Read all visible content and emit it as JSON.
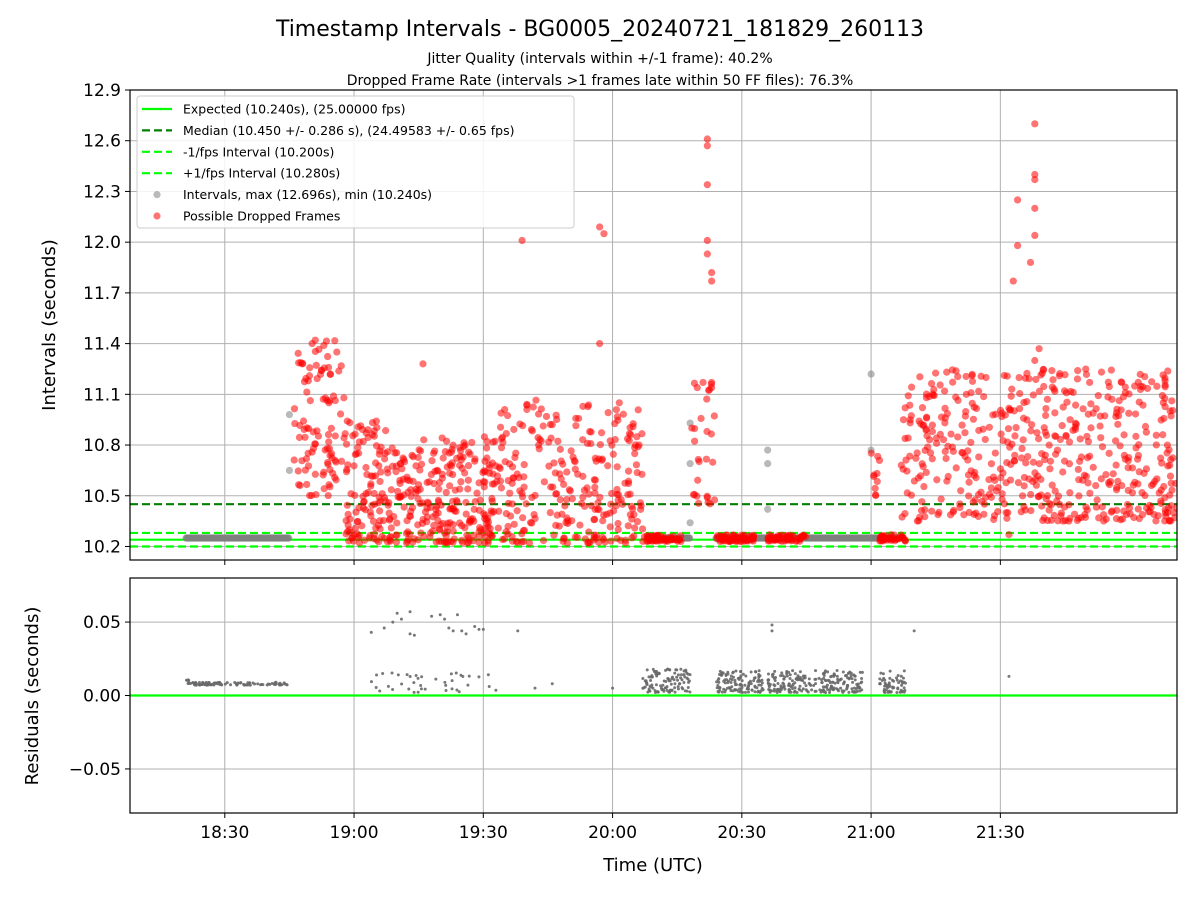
{
  "title": "Timestamp Intervals - BG0005_20240721_181829_260113",
  "subtitle_1": "Jitter Quality (intervals within +/-1 frame): 40.2%",
  "subtitle_2": "Dropped Frame Rate (intervals >1 frames late within 50 FF files): 76.3%",
  "xlabel": "Time (UTC)",
  "colors": {
    "expected": "#00ff00",
    "median": "#008000",
    "interval_points": "#808080",
    "dropped_points": "#ff0000",
    "residuals": "#696969",
    "grid": "#b0b0b0"
  },
  "chart_data": [
    {
      "type": "scatter",
      "panel": "intervals",
      "ylabel": "Intervals (seconds)",
      "xlim": [
        "18:08",
        "22:11"
      ],
      "ylim": [
        10.12,
        12.9
      ],
      "x_ticks": [
        "18:30",
        "19:00",
        "19:30",
        "20:00",
        "20:30",
        "21:00",
        "21:30"
      ],
      "y_ticks": [
        "10.2",
        "10.5",
        "10.8",
        "11.1",
        "11.4",
        "11.7",
        "12.0",
        "12.3",
        "12.6",
        "12.9"
      ],
      "y_tick_values": [
        10.2,
        10.5,
        10.8,
        11.1,
        11.4,
        11.7,
        12.0,
        12.3,
        12.6,
        12.9
      ],
      "grid": true,
      "legend_position": "top-left",
      "legend": [
        {
          "label": "Expected (10.240s), (25.00000 fps)",
          "style": "solid-line",
          "color": "#00ff00"
        },
        {
          "label": "Median (10.450 +/- 0.286 s), (24.49583 +/- 0.65 fps)",
          "style": "dashed-line",
          "color": "#008000"
        },
        {
          "label": "-1/fps Interval (10.200s)",
          "style": "dashed-line",
          "color": "#00ff00"
        },
        {
          "label": "+1/fps Interval (10.280s)",
          "style": "dashed-line",
          "color": "#00ff00"
        },
        {
          "label": "Intervals, max (12.696s), min (10.240s)",
          "style": "marker",
          "color": "#808080"
        },
        {
          "label": "Possible Dropped Frames",
          "style": "marker",
          "color": "#ff0000"
        }
      ],
      "reference_lines": [
        {
          "name": "Expected",
          "y": 10.24,
          "style": "solid",
          "color": "#00ff00"
        },
        {
          "name": "Median",
          "y": 10.45,
          "style": "dashed",
          "color": "#008000"
        },
        {
          "name": "-1/fps Interval",
          "y": 10.2,
          "style": "dashed",
          "color": "#00ff00"
        },
        {
          "name": "+1/fps Interval",
          "y": 10.28,
          "style": "dashed",
          "color": "#00ff00"
        }
      ],
      "series": [
        {
          "name": "Intervals, max (12.696s), min (10.240s)",
          "color": "#808080",
          "segments": [
            {
              "x_start": "18:21",
              "x_end": "18:45",
              "y": 10.25
            },
            {
              "x_start": "20:08",
              "x_end": "20:18",
              "y": 10.25
            },
            {
              "x_start": "20:24",
              "x_end": "21:07",
              "y": 10.25
            }
          ],
          "points": [
            {
              "x": "18:45",
              "y": 10.65
            },
            {
              "x": "18:45",
              "y": 10.98
            },
            {
              "x": "20:18",
              "y": 10.93
            },
            {
              "x": "20:18",
              "y": 10.69
            },
            {
              "x": "20:18",
              "y": 10.34
            },
            {
              "x": "20:36",
              "y": 10.77
            },
            {
              "x": "20:36",
              "y": 10.69
            },
            {
              "x": "20:36",
              "y": 10.42
            },
            {
              "x": "21:00",
              "y": 11.22
            },
            {
              "x": "21:00",
              "y": 10.77
            }
          ]
        },
        {
          "name": "Possible Dropped Frames",
          "color": "#ff0000",
          "clusters": [
            {
              "x_start": "18:46",
              "x_end": "18:58",
              "y_min": 10.5,
              "y_max": 11.42,
              "count": 95
            },
            {
              "x_start": "18:58",
              "x_end": "19:08",
              "y_min": 10.22,
              "y_max": 10.95,
              "count": 110
            },
            {
              "x_start": "19:08",
              "x_end": "19:33",
              "y_min": 10.22,
              "y_max": 10.85,
              "count": 260
            },
            {
              "x_start": "19:33",
              "x_end": "20:07",
              "y_min": 10.22,
              "y_max": 11.07,
              "count": 260
            },
            {
              "x_start": "20:07",
              "x_end": "20:16",
              "y_min": 10.23,
              "y_max": 10.27,
              "count": 60
            },
            {
              "x_start": "20:18",
              "x_end": "20:24",
              "y_min": 10.45,
              "y_max": 11.17,
              "count": 28
            },
            {
              "x_start": "20:24",
              "x_end": "20:33",
              "y_min": 10.23,
              "y_max": 10.27,
              "count": 60
            },
            {
              "x_start": "20:36",
              "x_end": "20:45",
              "y_min": 10.23,
              "y_max": 10.27,
              "count": 60
            },
            {
              "x_start": "21:00",
              "x_end": "21:02",
              "y_min": 10.5,
              "y_max": 10.8,
              "count": 10
            },
            {
              "x_start": "21:02",
              "x_end": "21:08",
              "y_min": 10.23,
              "y_max": 10.27,
              "count": 40
            },
            {
              "x_start": "21:07",
              "x_end": "22:11",
              "y_min": 10.35,
              "y_max": 11.25,
              "count": 520
            }
          ],
          "points": [
            {
              "x": "18:51",
              "y": 11.42
            },
            {
              "x": "18:48",
              "y": 11.28
            },
            {
              "x": "18:56",
              "y": 11.35
            },
            {
              "x": "19:16",
              "y": 11.28
            },
            {
              "x": "19:39",
              "y": 12.01
            },
            {
              "x": "19:57",
              "y": 12.09
            },
            {
              "x": "19:58",
              "y": 12.05
            },
            {
              "x": "19:57",
              "y": 11.4
            },
            {
              "x": "20:22",
              "y": 12.61
            },
            {
              "x": "20:22",
              "y": 12.57
            },
            {
              "x": "20:22",
              "y": 12.34
            },
            {
              "x": "20:22",
              "y": 12.01
            },
            {
              "x": "20:22",
              "y": 11.93
            },
            {
              "x": "20:23",
              "y": 11.82
            },
            {
              "x": "20:23",
              "y": 11.77
            },
            {
              "x": "20:21",
              "y": 11.17
            },
            {
              "x": "20:23",
              "y": 11.17
            },
            {
              "x": "21:34",
              "y": 12.25
            },
            {
              "x": "21:34",
              "y": 11.98
            },
            {
              "x": "21:33",
              "y": 11.77
            },
            {
              "x": "21:37",
              "y": 11.88
            },
            {
              "x": "21:38",
              "y": 12.4
            },
            {
              "x": "21:38",
              "y": 12.37
            },
            {
              "x": "21:38",
              "y": 12.2
            },
            {
              "x": "21:38",
              "y": 12.04
            },
            {
              "x": "21:38",
              "y": 12.7
            },
            {
              "x": "21:39",
              "y": 11.37
            },
            {
              "x": "21:38",
              "y": 11.3
            },
            {
              "x": "21:32",
              "y": 10.27
            }
          ]
        }
      ]
    },
    {
      "type": "scatter",
      "panel": "residuals",
      "ylabel": "Residuals (seconds)",
      "xlim": [
        "18:08",
        "22:11"
      ],
      "ylim": [
        -0.08,
        0.08
      ],
      "x_ticks": [
        "18:30",
        "19:00",
        "19:30",
        "20:00",
        "20:30",
        "21:00",
        "21:30"
      ],
      "y_ticks": [
        "0.05",
        "0.00",
        "−0.05"
      ],
      "y_tick_values": [
        0.05,
        0.0,
        -0.05
      ],
      "grid": true,
      "reference_lines": [
        {
          "name": "zero",
          "y": 0.0,
          "style": "solid",
          "color": "#00ff00"
        }
      ],
      "series": [
        {
          "name": "Residuals",
          "color": "#696969",
          "clusters": [
            {
              "x_start": "18:21",
              "x_end": "18:22",
              "y_min": 0.008,
              "y_max": 0.012,
              "count": 6
            },
            {
              "x_start": "18:22",
              "x_end": "18:45",
              "y_min": 0.007,
              "y_max": 0.009,
              "count": 90
            },
            {
              "x_start": "19:03",
              "x_end": "19:33",
              "y_min": 0.002,
              "y_max": 0.016,
              "count": 40
            },
            {
              "x_start": "20:07",
              "x_end": "20:18",
              "y_min": 0.002,
              "y_max": 0.018,
              "count": 110
            },
            {
              "x_start": "20:24",
              "x_end": "20:35",
              "y_min": 0.002,
              "y_max": 0.017,
              "count": 120
            },
            {
              "x_start": "20:36",
              "x_end": "20:58",
              "y_min": 0.002,
              "y_max": 0.017,
              "count": 230
            },
            {
              "x_start": "21:02",
              "x_end": "21:08",
              "y_min": 0.002,
              "y_max": 0.017,
              "count": 60
            }
          ],
          "points": [
            {
              "x": "19:04",
              "y": 0.043
            },
            {
              "x": "19:07",
              "y": 0.046
            },
            {
              "x": "19:09",
              "y": 0.05
            },
            {
              "x": "19:10",
              "y": 0.056
            },
            {
              "x": "19:11",
              "y": 0.052
            },
            {
              "x": "19:13",
              "y": 0.057
            },
            {
              "x": "19:13",
              "y": 0.042
            },
            {
              "x": "19:14",
              "y": 0.041
            },
            {
              "x": "19:18",
              "y": 0.054
            },
            {
              "x": "19:20",
              "y": 0.055
            },
            {
              "x": "19:21",
              "y": 0.052
            },
            {
              "x": "19:22",
              "y": 0.046
            },
            {
              "x": "19:23",
              "y": 0.044
            },
            {
              "x": "19:24",
              "y": 0.055
            },
            {
              "x": "19:25",
              "y": 0.044
            },
            {
              "x": "19:26",
              "y": 0.042
            },
            {
              "x": "19:28",
              "y": 0.047
            },
            {
              "x": "19:29",
              "y": 0.045
            },
            {
              "x": "19:30",
              "y": 0.045
            },
            {
              "x": "19:38",
              "y": 0.044
            },
            {
              "x": "19:42",
              "y": 0.005
            },
            {
              "x": "19:46",
              "y": 0.008
            },
            {
              "x": "20:00",
              "y": 0.005
            },
            {
              "x": "20:37",
              "y": 0.048
            },
            {
              "x": "20:37",
              "y": 0.044
            },
            {
              "x": "21:10",
              "y": 0.044
            },
            {
              "x": "21:32",
              "y": 0.013
            }
          ]
        }
      ]
    }
  ]
}
